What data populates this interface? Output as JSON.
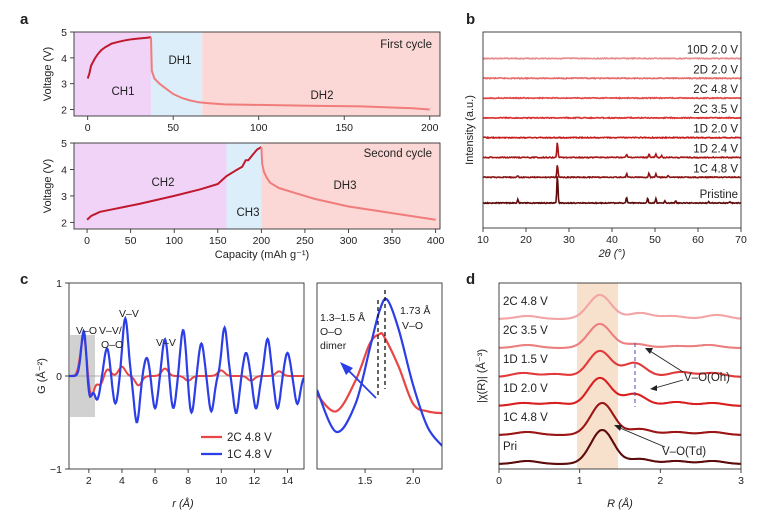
{
  "colors": {
    "charge_bg": "#f0d3f7",
    "dh1_bg": "#dbeefa",
    "discharge_bg": "#fbd8d5",
    "curve_dark": "#c0192d",
    "curve_light": "#f07c7c",
    "gr_red": "#e84545",
    "gr_blue": "#2c3ee6",
    "xrd": [
      "#e88b8b",
      "#e66a6a",
      "#e04848",
      "#d92f2f",
      "#c61d1d",
      "#a81616",
      "#8a1212",
      "#5e0b0b"
    ],
    "exafs": [
      "#f3a4a4",
      "#ec7f7f",
      "#e23a3a",
      "#d91f1f",
      "#9c1515",
      "#5e0b0b"
    ]
  },
  "chart_data": [
    {
      "panel": "a",
      "type": "line",
      "title": "First cycle",
      "ylabel": "Voltage (V)",
      "xlim": [
        -8,
        206
      ],
      "ylim": [
        1.75,
        5
      ],
      "xticks": [
        0,
        50,
        100,
        150,
        200
      ],
      "yticks": [
        2,
        3,
        4,
        5
      ],
      "regions": [
        {
          "label": "CH1",
          "x0": -8,
          "x1": 37,
          "kind": "charge"
        },
        {
          "label": "DH1",
          "x0": 37,
          "x1": 67,
          "kind": "dh1"
        },
        {
          "label": "DH2",
          "x0": 67,
          "x1": 206,
          "kind": "discharge"
        }
      ],
      "series": [
        {
          "name": "charge",
          "color": "dark",
          "x": [
            0,
            1,
            2,
            4,
            6,
            8,
            10,
            14,
            18,
            22,
            26,
            30,
            34,
            37,
            37
          ],
          "y": [
            3.2,
            3.4,
            3.7,
            3.95,
            4.15,
            4.3,
            4.4,
            4.55,
            4.62,
            4.68,
            4.72,
            4.75,
            4.77,
            4.8,
            4.8
          ]
        },
        {
          "name": "discharge",
          "color": "light",
          "x": [
            37,
            37.5,
            39,
            42,
            46,
            50,
            55,
            60,
            65,
            70,
            80,
            100,
            130,
            160,
            190,
            200
          ],
          "y": [
            4.8,
            3.5,
            3.2,
            3.0,
            2.8,
            2.6,
            2.45,
            2.35,
            2.28,
            2.25,
            2.2,
            2.18,
            2.15,
            2.12,
            2.05,
            2.0
          ]
        }
      ]
    },
    {
      "panel": "a-lower",
      "type": "line",
      "title": "Second cycle",
      "xlabel": "Capacity (mAh g⁻¹)",
      "ylabel": "Voltage (V)",
      "xlim": [
        -15,
        405
      ],
      "ylim": [
        1.75,
        5
      ],
      "xticks": [
        0,
        50,
        100,
        150,
        200,
        250,
        300,
        350,
        400
      ],
      "yticks": [
        2,
        3,
        4,
        5
      ],
      "regions": [
        {
          "label": "CH2",
          "x0": -15,
          "x1": 160,
          "kind": "charge"
        },
        {
          "label": "CH3",
          "x0": 160,
          "x1": 200,
          "kind": "dh1"
        },
        {
          "label": "DH3",
          "x0": 200,
          "x1": 405,
          "kind": "discharge"
        }
      ],
      "series": [
        {
          "name": "charge",
          "color": "dark",
          "x": [
            0,
            5,
            15,
            30,
            60,
            100,
            130,
            150,
            160,
            170,
            178,
            182,
            185,
            190,
            195,
            200
          ],
          "y": [
            2.1,
            2.25,
            2.4,
            2.5,
            2.7,
            3.0,
            3.25,
            3.45,
            3.75,
            3.95,
            4.1,
            4.35,
            4.35,
            4.55,
            4.75,
            4.85
          ]
        },
        {
          "name": "discharge",
          "color": "light",
          "x": [
            200,
            201,
            203,
            206,
            210,
            220,
            240,
            260,
            300,
            350,
            400
          ],
          "y": [
            4.85,
            4.2,
            3.9,
            3.7,
            3.5,
            3.3,
            3.1,
            2.9,
            2.6,
            2.35,
            2.1
          ]
        }
      ]
    },
    {
      "panel": "b",
      "type": "line",
      "xlabel": "2θ (°)",
      "ylabel": "Intensity (a.u.)",
      "xlim": [
        10,
        70
      ],
      "xticks": [
        10,
        20,
        30,
        40,
        50,
        60,
        70
      ],
      "series": [
        {
          "name": "10D 2.0 V",
          "offset": 7.3,
          "peaks": []
        },
        {
          "name": "2D 2.0 V",
          "offset": 6.3,
          "peaks": []
        },
        {
          "name": "2C 4.8 V",
          "offset": 5.3,
          "peaks": []
        },
        {
          "name": "2C 3.5 V",
          "offset": 4.3,
          "peaks": []
        },
        {
          "name": "1D 2.0 V",
          "offset": 3.3,
          "peaks": []
        },
        {
          "name": "1D 2.4 V",
          "offset": 2.3,
          "peaks": [
            [
              27.3,
              1.3
            ],
            [
              43.4,
              0.25
            ],
            [
              48.6,
              0.3
            ],
            [
              50.2,
              0.25
            ],
            [
              51.5,
              0.15
            ]
          ]
        },
        {
          "name": "1C 4.8 V",
          "offset": 1.3,
          "peaks": [
            [
              18.1,
              0.12
            ],
            [
              27.3,
              1.1
            ],
            [
              43.4,
              0.3
            ],
            [
              48.6,
              0.35
            ],
            [
              50.2,
              0.3
            ],
            [
              53.0,
              0.15
            ]
          ]
        },
        {
          "name": "Pristine",
          "offset": 0,
          "peaks": [
            [
              18.1,
              0.3
            ],
            [
              27.3,
              2.4
            ],
            [
              43.4,
              0.5
            ],
            [
              48.3,
              0.4
            ],
            [
              50.2,
              0.35
            ],
            [
              52.3,
              0.2
            ],
            [
              54.8,
              0.15
            ],
            [
              62.5,
              0.12
            ],
            [
              67.4,
              0.1
            ]
          ]
        }
      ]
    },
    {
      "panel": "c",
      "type": "line",
      "xlabel": "r (Å)",
      "ylabel": "G (Å⁻²)",
      "xlim": [
        0.8,
        15
      ],
      "ylim": [
        -1,
        1
      ],
      "xticks": [
        2,
        4,
        6,
        8,
        10,
        12,
        14
      ],
      "yticks": [
        -1,
        0,
        1
      ],
      "series": [
        {
          "name": "2C 4.8 V",
          "color": "red",
          "amplitude": 0.1
        },
        {
          "name": "1C 4.8 V",
          "color": "blue",
          "amplitude": 0.5
        }
      ],
      "annotations": [
        "V–O",
        "V–V/",
        "O–O",
        "V–V",
        "V–V"
      ]
    },
    {
      "panel": "c-inset",
      "type": "line",
      "xlim": [
        1.0,
        2.3
      ],
      "xticks": [
        1.5,
        2.0
      ],
      "series": [
        {
          "name": "2C 4.8 V",
          "color": "red",
          "x": [
            1.0,
            1.2,
            1.4,
            1.55,
            1.65,
            1.7,
            1.85,
            2.0,
            2.15,
            2.3
          ],
          "y": [
            -0.2,
            -0.38,
            -0.05,
            0.35,
            0.45,
            0.42,
            0.1,
            -0.3,
            -0.38,
            -0.4
          ]
        },
        {
          "name": "1C 4.8 V",
          "color": "blue",
          "x": [
            1.0,
            1.2,
            1.4,
            1.55,
            1.65,
            1.73,
            1.85,
            2.0,
            2.15,
            2.3
          ],
          "y": [
            -0.15,
            -0.6,
            -0.3,
            0.3,
            0.7,
            0.82,
            0.5,
            -0.1,
            -0.55,
            -0.75
          ]
        }
      ],
      "annotations": [
        "1.3–1.5 Å",
        "O–O",
        "dimer",
        "1.73 Å",
        "V–O"
      ]
    },
    {
      "panel": "d",
      "type": "line",
      "xlabel": "R (Å)",
      "ylabel": "|χ(R)| (Å⁻³)",
      "xlim": [
        0,
        3
      ],
      "xticks": [
        0,
        1,
        2,
        3
      ],
      "series": [
        {
          "name": "2C 4.8 V",
          "offset": 5,
          "peak": 1.25
        },
        {
          "name": "2C 3.5 V",
          "offset": 4,
          "peak": 1.25
        },
        {
          "name": "1D 1.5 V",
          "offset": 3,
          "peak": 1.25
        },
        {
          "name": "1D 2.0 V",
          "offset": 2,
          "peak": 1.25
        },
        {
          "name": "1C 4.8 V",
          "offset": 1,
          "peak": 1.25
        },
        {
          "name": "Pri",
          "offset": 0,
          "peak": 1.28
        }
      ],
      "annotations": [
        "V–O(Oh)",
        "V–O(Td)"
      ]
    }
  ],
  "labels": {
    "panel_a": "a",
    "panel_b": "b",
    "panel_c": "c",
    "panel_d": "d",
    "first_cycle": "First cycle",
    "second_cycle": "Second cycle",
    "ch1": "CH1",
    "dh1": "DH1",
    "dh2": "DH2",
    "ch2": "CH2",
    "ch3": "CH3",
    "dh3": "DH3",
    "voltage_top": "Voltage (V)",
    "voltage_bottom": "Voltage (V)",
    "capacity": "Capacity (mAh g⁻¹)",
    "intensity": "Intensity (a.u.)",
    "two_theta": "2θ (°)",
    "g_axis": "G (Å⁻²)",
    "r_axis": "r (Å)",
    "chi_axis": "|χ(R)| (Å⁻³)",
    "R_axis": "R (Å)",
    "vo_c": "V–O",
    "vv_oo_1": "V–V/",
    "vv_oo_2": "O–O",
    "vv_1": "V–V",
    "vv_2": "V–V",
    "inset_oo_1": "1.3–1.5 Å",
    "inset_oo_2": "O–O",
    "inset_oo_3": "dimer",
    "inset_vo_1": "1.73 Å",
    "inset_vo_2": "V–O",
    "legend_red": "2C 4.8 V",
    "legend_blue": "1C 4.8 V",
    "d_oh": "V–O(Oh)",
    "d_td": "V–O(Td)"
  }
}
